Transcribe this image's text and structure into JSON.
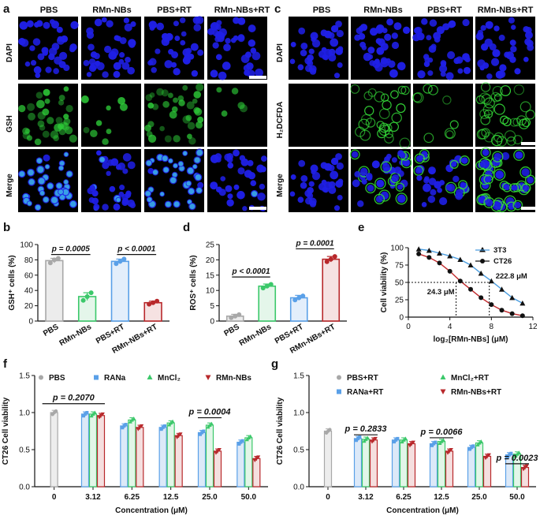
{
  "panel_labels": {
    "a": "a",
    "b": "b",
    "c": "c",
    "d": "d",
    "e": "e",
    "f": "f",
    "g": "g"
  },
  "micro_a": {
    "columns": [
      "PBS",
      "RMn-NBs",
      "PBS+RT",
      "RMn-NBs+RT"
    ],
    "rows": [
      "DAPI",
      "GSH",
      "Merge"
    ]
  },
  "micro_c": {
    "columns": [
      "PBS",
      "RMn-NBs",
      "PBS+RT",
      "RMn-NBs+RT"
    ],
    "rows": [
      "DAPI",
      "H₂DCFDA",
      "Merge"
    ]
  },
  "colors": {
    "dapi": "#1f1fe6",
    "gsh": "#2fd23a",
    "ros": "#36e23a",
    "merge_cyan": "#40c8e8",
    "gray": "#a8a8a8",
    "blue": "#5aa0e8",
    "green": "#3bc86a",
    "red": "#b8282b",
    "ct26": "#111111"
  },
  "chart_data": [
    {
      "id": "b",
      "type": "bar",
      "categories": [
        "PBS",
        "RMn-NBs",
        "PBS+RT",
        "RMn-NBs+RT"
      ],
      "values": [
        79,
        32,
        78,
        24
      ],
      "errors": [
        3,
        5,
        3,
        2
      ],
      "points": [
        [
          76,
          80,
          82
        ],
        [
          27,
          32,
          37
        ],
        [
          75,
          78,
          81
        ],
        [
          22,
          24,
          26
        ]
      ],
      "ylabel": "GSH⁺ cells (%)",
      "ylim": [
        0,
        100
      ],
      "yticks": [
        0,
        20,
        40,
        60,
        80,
        100
      ],
      "sig": [
        {
          "label": "p = 0.0005",
          "from": 0,
          "to": 1,
          "y": 87
        },
        {
          "label": "p < 0.0001",
          "from": 2,
          "to": 3,
          "y": 87
        }
      ]
    },
    {
      "id": "d",
      "type": "bar",
      "categories": [
        "PBS",
        "RMn-NBs",
        "PBS+RT",
        "RMn-NBs+RT"
      ],
      "values": [
        1.6,
        11.4,
        7.6,
        20.2
      ],
      "errors": [
        0.6,
        0.7,
        0.8,
        0.9
      ],
      "points": [
        [
          1.1,
          1.6,
          2.1
        ],
        [
          10.8,
          11.4,
          12.0
        ],
        [
          6.9,
          7.6,
          8.2
        ],
        [
          19.4,
          20.2,
          21.1
        ]
      ],
      "ylabel": "ROS⁺ cells (%)",
      "ylim": [
        0,
        25
      ],
      "yticks": [
        0,
        5,
        10,
        15,
        20,
        25
      ],
      "sig": [
        {
          "label": "p < 0.0001",
          "from": 0,
          "to": 1,
          "y": 14.4
        },
        {
          "label": "p = 0.0001",
          "from": 2,
          "to": 3,
          "y": 23.6
        }
      ]
    },
    {
      "id": "e",
      "type": "scatter",
      "xlabel": "log₂[RMn-NBs] (μM)",
      "ylabel": "Cell viability (%)",
      "xlim": [
        0,
        12
      ],
      "ylim": [
        0,
        100
      ],
      "xticks": [
        0,
        4,
        8,
        12
      ],
      "yticks": [
        0,
        25,
        50,
        75,
        100
      ],
      "series": [
        {
          "name": "3T3",
          "x": [
            1,
            2,
            3,
            4,
            5,
            6,
            7,
            8,
            9,
            10,
            11
          ],
          "y": [
            98,
            96,
            92,
            88,
            83,
            75,
            63,
            52,
            40,
            28,
            20
          ]
        },
        {
          "name": "CT26",
          "x": [
            1,
            2,
            3,
            4,
            5,
            6,
            7,
            8,
            9,
            10,
            11
          ],
          "y": [
            91,
            86,
            78,
            66,
            52,
            40,
            28,
            18,
            10,
            5,
            2
          ]
        }
      ],
      "annotations": [
        {
          "text": "24.3 μM",
          "x": 4.6,
          "y": 50
        },
        {
          "text": "222.8 μM",
          "x": 7.8,
          "y": 50
        }
      ]
    },
    {
      "id": "f",
      "type": "bar",
      "ylabel": "CT26 Cell viability",
      "xlabel": "Concentration (μM)",
      "categories": [
        "0",
        "3.12",
        "6.25",
        "12.5",
        "25.0",
        "50.0"
      ],
      "ylim": [
        0,
        1.5
      ],
      "yticks": [
        "0.0",
        "0.5",
        "1.0",
        "1.5"
      ],
      "series": [
        {
          "name": "PBS",
          "values": [
            1.0,
            null,
            null,
            null,
            null,
            null
          ]
        },
        {
          "name": "RANa",
          "values": [
            null,
            0.98,
            0.82,
            0.8,
            0.73,
            0.6
          ]
        },
        {
          "name": "MnCl₂",
          "values": [
            null,
            0.98,
            0.9,
            0.86,
            0.83,
            0.66
          ]
        },
        {
          "name": "RMn-NBs",
          "values": [
            null,
            0.96,
            0.8,
            0.69,
            0.48,
            0.38
          ]
        }
      ],
      "sig": [
        {
          "label": "p = 0.2070",
          "from_cat": 0,
          "to_cat": 1,
          "y": 1.12
        },
        {
          "label": "p = 0.0004",
          "from_cat": 4,
          "to_cat": 4,
          "y": 0.93
        }
      ]
    },
    {
      "id": "g",
      "type": "bar",
      "ylabel": "CT26 Cell viability",
      "xlabel": "Concentration (μM)",
      "categories": [
        "0",
        "3.12",
        "6.25",
        "12.5",
        "25.0",
        "50.0"
      ],
      "ylim": [
        0,
        1.5
      ],
      "yticks": [
        "0.0",
        "0.5",
        "1.0",
        "1.5"
      ],
      "series": [
        {
          "name": "PBS+RT",
          "values": [
            0.75,
            null,
            null,
            null,
            null,
            null
          ]
        },
        {
          "name": "RANa+RT",
          "values": [
            null,
            0.65,
            0.63,
            0.58,
            0.53,
            0.43
          ]
        },
        {
          "name": "MnCl₂+RT",
          "values": [
            null,
            0.64,
            0.63,
            0.61,
            0.59,
            0.44
          ]
        },
        {
          "name": "RMn-NBs+RT",
          "values": [
            null,
            0.63,
            0.58,
            0.48,
            0.41,
            0.26
          ]
        }
      ],
      "sig": [
        {
          "label": "p = 0.2833",
          "from_cat": 1,
          "to_cat": 1,
          "y": 0.7
        },
        {
          "label": "p = 0.0066",
          "from_cat": 3,
          "to_cat": 3,
          "y": 0.66
        },
        {
          "label": "p = 0.0023",
          "from_cat": 5,
          "to_cat": 5,
          "y": 0.31
        }
      ]
    }
  ]
}
